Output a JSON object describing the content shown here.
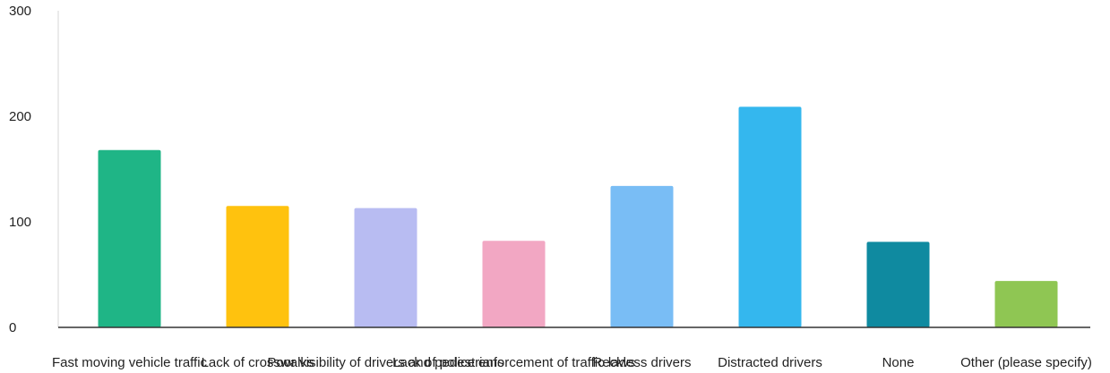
{
  "chart_data": {
    "type": "bar",
    "title": "",
    "xlabel": "",
    "ylabel": "",
    "ylim": [
      0,
      300
    ],
    "yticks": [
      0,
      100,
      200,
      300
    ],
    "grid": false,
    "legend": "none",
    "categories": [
      "Fast moving vehicle traffic",
      "Lack of crosswalks",
      "Poor visibility of drivers and pedestrians",
      "Lack of police enforcement of traffic laws",
      "Reckless drivers",
      "Distracted drivers",
      "None",
      "Other (please specify)"
    ],
    "values": [
      168,
      115,
      113,
      82,
      134,
      209,
      81,
      44
    ],
    "colors": [
      "#1fb586",
      "#ffc20e",
      "#b8bcf2",
      "#f2a7c3",
      "#79bdf5",
      "#34b7ee",
      "#0f8aa0",
      "#8fc653"
    ]
  }
}
